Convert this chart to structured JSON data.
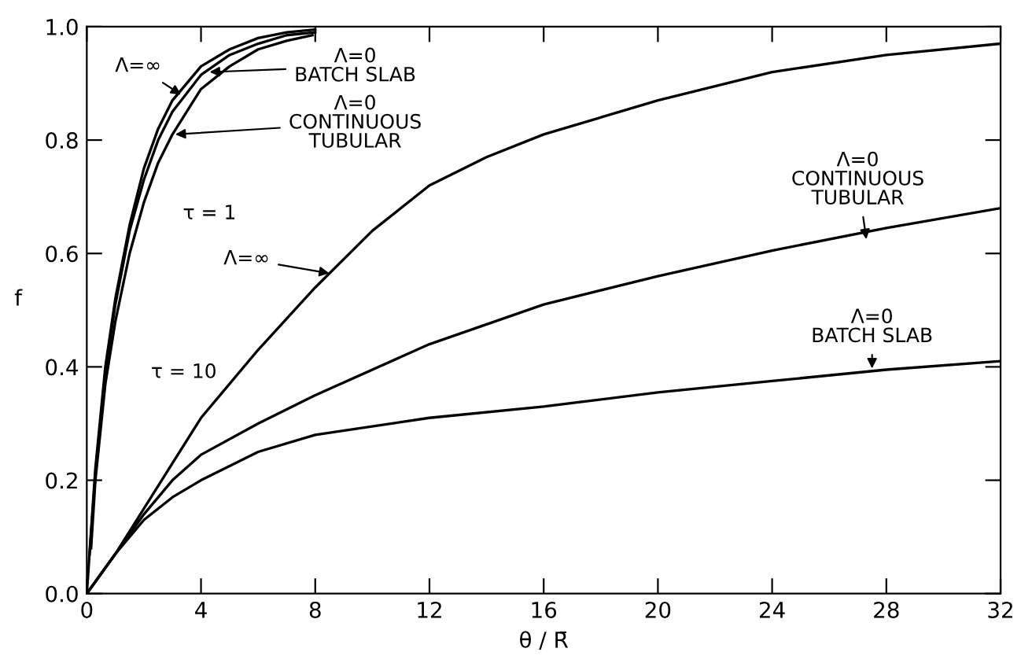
{
  "chart_data": {
    "type": "line",
    "xlabel": "θ / R̄",
    "ylabel": "f",
    "xlim": [
      0,
      32
    ],
    "ylim": [
      0,
      1.0
    ],
    "xticks": [
      0,
      4,
      8,
      12,
      16,
      20,
      24,
      28,
      32
    ],
    "yticks": [
      {
        "value": 0,
        "label": "0.0"
      },
      {
        "value": 0.2,
        "label": "0.2"
      },
      {
        "value": 0.4,
        "label": "0.4"
      },
      {
        "value": 0.6,
        "label": "0.6"
      },
      {
        "value": 0.8,
        "label": "0.8"
      },
      {
        "value": 1.0,
        "label": "1.0"
      }
    ],
    "grid": false,
    "legend": false,
    "marker": "none",
    "line_style": "solid",
    "series": [
      {
        "color": "#000000",
        "x": [
          0,
          0.3,
          0.65,
          1,
          1.5,
          2,
          2.5,
          3,
          4,
          5,
          6,
          7,
          8
        ],
        "values": [
          0,
          0.22,
          0.4,
          0.52,
          0.65,
          0.75,
          0.82,
          0.87,
          0.93,
          0.96,
          0.98,
          0.99,
          0.995
        ]
      },
      {
        "color": "#000000",
        "x": [
          0.1,
          0.3,
          0.65,
          1,
          1.5,
          2,
          2.5,
          3,
          4,
          5,
          6,
          7,
          8
        ],
        "values": [
          0.07,
          0.21,
          0.39,
          0.51,
          0.64,
          0.73,
          0.8,
          0.85,
          0.915,
          0.95,
          0.97,
          0.985,
          0.99
        ]
      },
      {
        "color": "#000000",
        "x": [
          0.15,
          0.3,
          0.65,
          1,
          1.5,
          2,
          2.5,
          3,
          4,
          5,
          6,
          7,
          7.9
        ],
        "values": [
          0.08,
          0.2,
          0.37,
          0.48,
          0.6,
          0.69,
          0.76,
          0.81,
          0.89,
          0.93,
          0.96,
          0.975,
          0.985
        ]
      },
      {
        "color": "#000000",
        "x": [
          0,
          1,
          2,
          3,
          4,
          6,
          8,
          10,
          12,
          14,
          16,
          20,
          24,
          28,
          32
        ],
        "values": [
          0,
          0.07,
          0.15,
          0.23,
          0.31,
          0.43,
          0.54,
          0.64,
          0.72,
          0.77,
          0.81,
          0.87,
          0.92,
          0.95,
          0.97
        ]
      },
      {
        "color": "#000000",
        "x": [
          0,
          1,
          2,
          3,
          4,
          6,
          8,
          12,
          16,
          20,
          24,
          28,
          32
        ],
        "values": [
          0,
          0.07,
          0.14,
          0.2,
          0.245,
          0.3,
          0.35,
          0.44,
          0.51,
          0.56,
          0.605,
          0.645,
          0.68
        ]
      },
      {
        "color": "#000000",
        "x": [
          0,
          1,
          2,
          3,
          4,
          6,
          8,
          12,
          16,
          20,
          24,
          28,
          32
        ],
        "values": [
          0,
          0.07,
          0.13,
          0.17,
          0.2,
          0.25,
          0.28,
          0.31,
          0.33,
          0.355,
          0.375,
          0.395,
          0.41
        ]
      }
    ],
    "annotations": [
      {
        "text": "Λ=∞",
        "x": 3.3,
        "y": 0.88
      },
      {
        "text": "Λ=0\nBATCH SLAB",
        "x": 4.3,
        "y": 0.92
      },
      {
        "text": "Λ=0\nCONTINUOUS\nTUBULAR",
        "x": 3.1,
        "y": 0.81
      },
      "τ = 1",
      {
        "text": "Λ=∞",
        "x": 8.5,
        "y": 0.565
      },
      "τ = 10",
      {
        "text": "Λ=0\nCONTINUOUS\nTUBULAR",
        "x": 27.3,
        "y": 0.625
      },
      {
        "text": "Λ=0\nBATCH SLAB",
        "x": 27.5,
        "y": 0.397
      }
    ]
  }
}
